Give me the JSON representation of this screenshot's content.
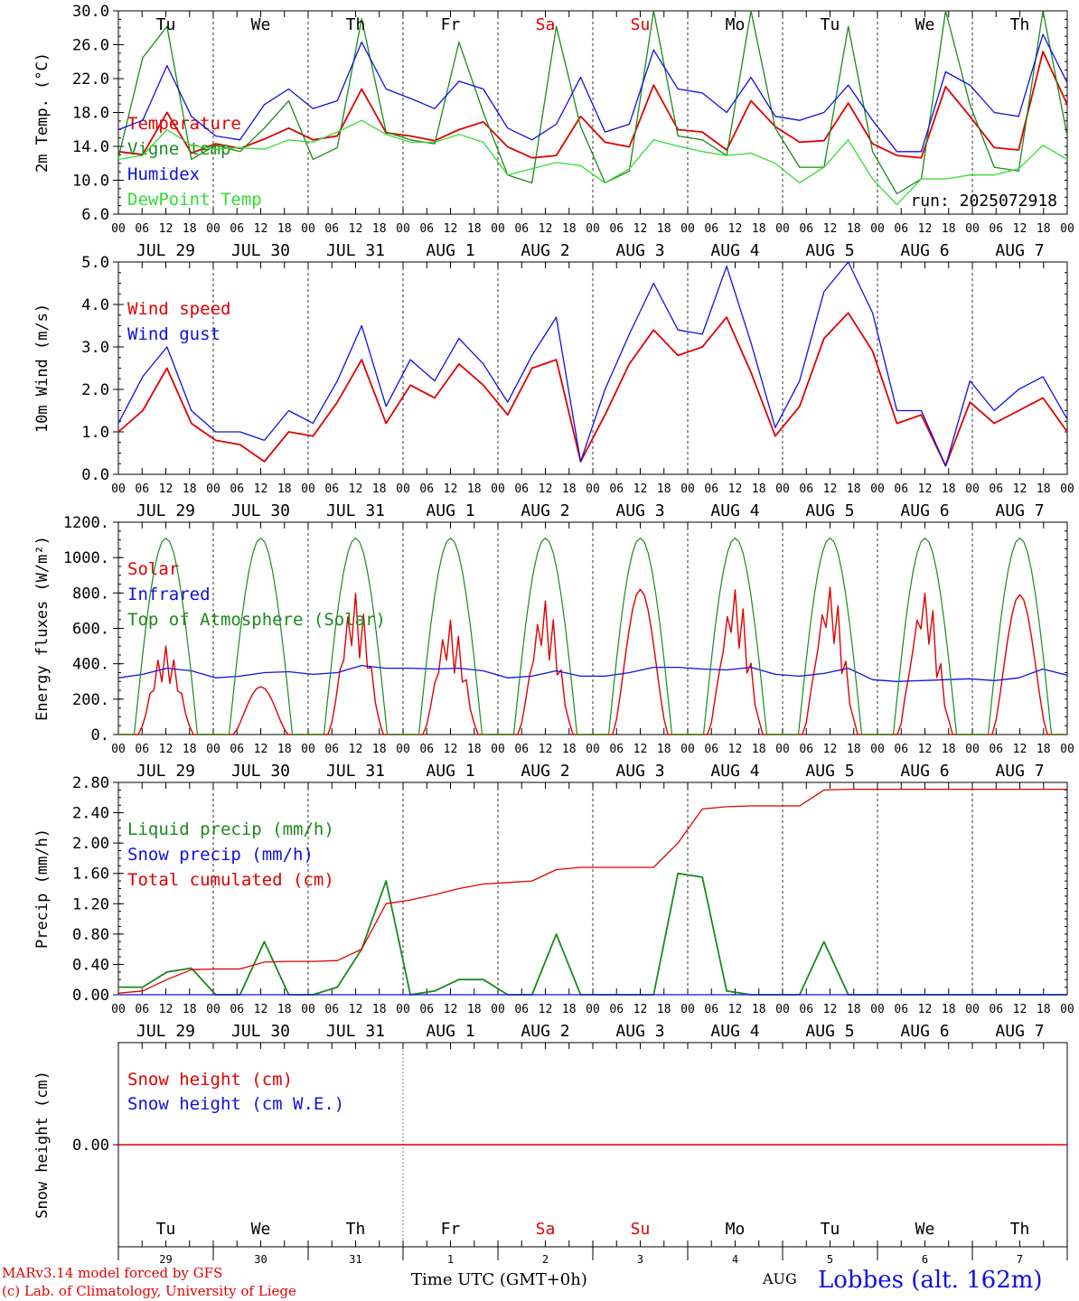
{
  "colors": {
    "red": "#e00000",
    "green": "#1a8a1a",
    "blue": "#1010e0",
    "lightgreen": "#33dd33",
    "grey": "#888888"
  },
  "date_labels": [
    "JUL 29",
    "JUL 30",
    "JUL 31",
    "AUG  1",
    "AUG  2",
    "AUG  3",
    "AUG  4",
    "AUG  5",
    "AUG  6",
    "AUG  7"
  ],
  "hour_ticks": [
    "00",
    "06",
    "12",
    "18"
  ],
  "last_hour_tick": "00",
  "weekdays": [
    {
      "label": "Tu",
      "weekend": false
    },
    {
      "label": "We",
      "weekend": false
    },
    {
      "label": "Th",
      "weekend": false
    },
    {
      "label": "Fr",
      "weekend": false
    },
    {
      "label": "Sa",
      "weekend": true
    },
    {
      "label": "Su",
      "weekend": true
    },
    {
      "label": "Mo",
      "weekend": false
    },
    {
      "label": "Tu",
      "weekend": false
    },
    {
      "label": "We",
      "weekend": false
    },
    {
      "label": "Th",
      "weekend": false
    }
  ],
  "day_numbers": [
    "29",
    "30",
    "31",
    "1",
    "2",
    "3",
    "4",
    "5",
    "6",
    "7"
  ],
  "footer": {
    "model": "MARv3.14 model forced by GFS",
    "copyright": "(c) Lab. of Climatology, University of Liege",
    "xlabel": "Time UTC (GMT+0h)",
    "month": "AUG",
    "station": "Lobbes (alt. 162m)"
  },
  "chart_data": [
    {
      "type": "line",
      "ylabel": "2m Temp. (°C)",
      "ylim": [
        6,
        32
      ],
      "yticks": [
        "6.0",
        "10.0",
        "14.0",
        "18.0",
        "22.0",
        "26.0",
        "30.0"
      ],
      "annotation": "run: 2025072918",
      "x_start": "2025-07-29 00 UTC",
      "x_step_hours": 6,
      "series": [
        {
          "name": "Temperature",
          "color": "red",
          "values": [
            14,
            13.6,
            19,
            13.8,
            15,
            14.4,
            15.6,
            17,
            15.5,
            16,
            22,
            16.4,
            16,
            15.4,
            16.8,
            17.8,
            14.6,
            13.2,
            13.5,
            18.5,
            15.2,
            14.6,
            22.5,
            16.8,
            16.5,
            14.2,
            20.5,
            17.2,
            15.2,
            15.4,
            20.2,
            15,
            13.5,
            13.2,
            22.3,
            18.5,
            14.5,
            14.2,
            26.8,
            20
          ]
        },
        {
          "name": "Vigne temp",
          "color": "green",
          "values": [
            13.2,
            26,
            30,
            13,
            14.8,
            14,
            17,
            20.5,
            13,
            14.5,
            31,
            16.5,
            15.5,
            15,
            28,
            19,
            11,
            10,
            30,
            17.2,
            10,
            11.5,
            32,
            16,
            15.5,
            13.5,
            32,
            17,
            12,
            12,
            30,
            14,
            8.6,
            10.5,
            32,
            20,
            12,
            11.5,
            32,
            16
          ]
        },
        {
          "name": "Humidex",
          "color": "blue",
          "values": [
            16.8,
            18,
            25,
            18.5,
            16,
            15.5,
            20,
            22,
            19.5,
            20.5,
            28,
            22,
            20.8,
            19.5,
            23,
            22,
            17,
            15.5,
            17.5,
            23.5,
            16.5,
            17.5,
            27,
            22,
            21.5,
            19,
            23.5,
            18.5,
            18,
            19,
            22.5,
            18,
            14,
            14,
            24.2,
            22.5,
            19,
            18.5,
            29,
            22.8
          ]
        },
        {
          "name": "DewPoint Temp",
          "color": "lightgreen",
          "values": [
            13,
            13.5,
            16.8,
            14.8,
            14.3,
            14.5,
            14.3,
            15.5,
            15.2,
            16.5,
            18,
            16.2,
            15.2,
            15.2,
            16.2,
            15.2,
            11,
            11.8,
            12.6,
            12.2,
            10,
            11.8,
            15.5,
            14.7,
            14,
            13.5,
            13.8,
            12.5,
            10,
            12,
            15.5,
            10.5,
            7.2,
            10.5,
            10.5,
            11,
            11,
            11.8,
            14.8,
            13
          ]
        }
      ]
    },
    {
      "type": "line",
      "ylabel": "10m Wind (m/s)",
      "ylim": [
        0,
        5
      ],
      "yticks": [
        "0.0",
        "1.0",
        "2.0",
        "3.0",
        "4.0",
        "5.0"
      ],
      "x_start": "2025-07-29 00 UTC",
      "x_step_hours": 6,
      "series": [
        {
          "name": "Wind speed",
          "color": "red",
          "values": [
            1,
            1.5,
            2.5,
            1.2,
            0.8,
            0.7,
            0.3,
            1,
            0.9,
            1.7,
            2.7,
            1.2,
            2.1,
            1.8,
            2.6,
            2.1,
            1.4,
            2.5,
            2.7,
            0.3,
            1.4,
            2.6,
            3.4,
            2.8,
            3,
            3.7,
            2.4,
            0.9,
            1.6,
            3.2,
            3.8,
            2.9,
            1.2,
            1.4,
            0.2,
            1.7,
            1.2,
            1.5,
            1.8,
            1.0
          ]
        },
        {
          "name": "Wind gust",
          "color": "blue",
          "values": [
            1.2,
            2.3,
            3,
            1.5,
            1,
            1,
            0.8,
            1.5,
            1.2,
            2.2,
            3.5,
            1.6,
            2.7,
            2.2,
            3.2,
            2.6,
            1.7,
            2.8,
            3.7,
            0.3,
            2,
            3.3,
            4.5,
            3.4,
            3.3,
            4.9,
            3.1,
            1.1,
            2.2,
            4.3,
            5,
            3.8,
            1.5,
            1.5,
            0.2,
            2.2,
            1.5,
            2,
            2.3,
            1.3
          ]
        }
      ]
    },
    {
      "type": "line",
      "ylabel": "Energy fluxes (W/m²)",
      "ylim": [
        0,
        1200
      ],
      "yticks": [
        "0.",
        "200.",
        "400.",
        "600.",
        "800.",
        "1000.",
        "1200."
      ],
      "x_start": "2025-07-29 00 UTC",
      "x_step_hours": 6,
      "series": [
        {
          "name": "Solar",
          "color": "red",
          "peaks": [
            500,
            270,
            800,
            650,
            760,
            820,
            830,
            850,
            820,
            790
          ]
        },
        {
          "name": "Infrared",
          "color": "blue",
          "values": [
            320,
            340,
            375,
            360,
            320,
            330,
            350,
            355,
            340,
            350,
            390,
            375,
            375,
            370,
            375,
            360,
            320,
            330,
            360,
            330,
            330,
            350,
            380,
            380,
            370,
            365,
            380,
            340,
            330,
            345,
            375,
            310,
            300,
            305,
            310,
            315,
            305,
            320,
            370,
            335
          ]
        },
        {
          "name": "Top of Atmosphere (Solar)",
          "color": "green",
          "peak": 1110
        }
      ]
    },
    {
      "type": "line",
      "ylabel": "Precip (mm/h)",
      "ylim": [
        0,
        2.8
      ],
      "yticks": [
        "0.00",
        "0.40",
        "0.80",
        "1.20",
        "1.60",
        "2.00",
        "2.40",
        "2.80"
      ],
      "x_start": "2025-07-29 00 UTC",
      "x_step_hours": 6,
      "series": [
        {
          "name": "Liquid precip (mm/h)",
          "color": "green",
          "values": [
            0.1,
            0.1,
            0.3,
            0.35,
            0,
            0,
            0.7,
            0,
            0,
            0.1,
            0.6,
            1.5,
            0,
            0.05,
            0.2,
            0.2,
            0,
            0,
            0.8,
            0,
            0,
            0,
            0,
            1.6,
            1.55,
            0.05,
            0,
            0,
            0,
            0.7,
            0,
            0,
            0,
            0,
            0,
            0,
            0,
            0,
            0,
            0
          ]
        },
        {
          "name": "Snow precip (mm/h)",
          "color": "blue",
          "values": [
            0,
            0,
            0,
            0,
            0,
            0,
            0,
            0,
            0,
            0,
            0,
            0,
            0,
            0,
            0,
            0,
            0,
            0,
            0,
            0,
            0,
            0,
            0,
            0,
            0,
            0,
            0,
            0,
            0,
            0,
            0,
            0,
            0,
            0,
            0,
            0,
            0,
            0,
            0,
            0
          ]
        },
        {
          "name": "Total cumulated (cm)",
          "color": "red",
          "values": [
            0.02,
            0.05,
            0.2,
            0.33,
            0.34,
            0.34,
            0.43,
            0.44,
            0.44,
            0.45,
            0.6,
            1.2,
            1.25,
            1.32,
            1.4,
            1.46,
            1.48,
            1.5,
            1.65,
            1.68,
            1.68,
            1.68,
            1.68,
            2.0,
            2.45,
            2.48,
            2.49,
            2.49,
            2.49,
            2.7,
            2.71,
            2.71,
            2.71,
            2.71,
            2.71,
            2.71,
            2.71,
            2.71,
            2.71,
            2.71
          ]
        }
      ]
    },
    {
      "type": "line",
      "ylabel": "Snow height (cm)",
      "ylim": [
        -1,
        1
      ],
      "yticks": [
        "0.00"
      ],
      "x_start": "2025-07-29 00 UTC",
      "x_step_hours": 6,
      "series": [
        {
          "name": "Snow height (cm)",
          "color": "red",
          "values": [
            0,
            0
          ]
        },
        {
          "name": "Snow height (cm W.E.)",
          "color": "blue",
          "values": []
        }
      ]
    }
  ]
}
